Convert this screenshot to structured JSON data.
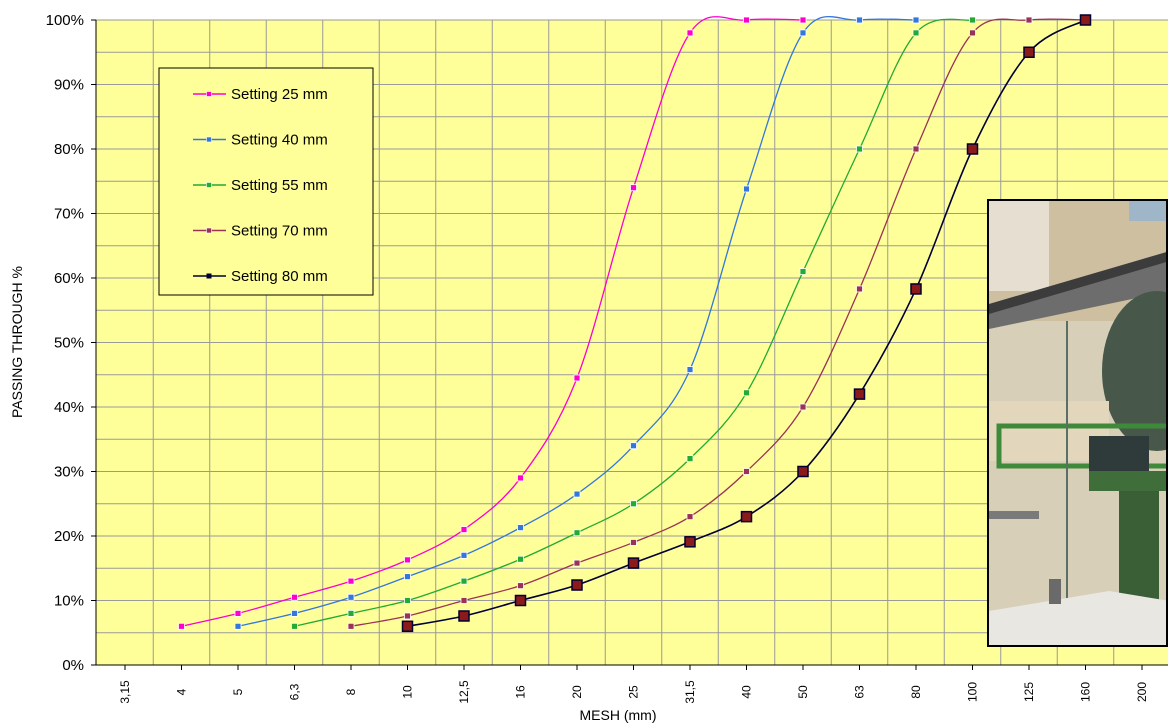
{
  "chart_data": {
    "type": "line",
    "xlabel": "MESH (mm)",
    "ylabel": "PASSING THROUGH %",
    "x_scale": "log",
    "x_ticks": [
      "3,15",
      "4",
      "5",
      "6,3",
      "8",
      "10",
      "12,5",
      "16",
      "20",
      "25",
      "31,5",
      "40",
      "50",
      "63",
      "80",
      "100",
      "125",
      "160",
      "200"
    ],
    "y_ticks": [
      "0%",
      "10%",
      "20%",
      "30%",
      "40%",
      "50%",
      "60%",
      "70%",
      "80%",
      "90%",
      "100%"
    ],
    "ylim": [
      0,
      100
    ],
    "grid": true,
    "legend_position": "top-left",
    "background_color": "#FFFF99",
    "grid_color": "#999999",
    "series": [
      {
        "name": "Setting 25 mm",
        "color": "#FF00CC",
        "marker": "small-square",
        "x": [
          4,
          5,
          6.3,
          8,
          10,
          12.5,
          16,
          20,
          25,
          31.5,
          40,
          50
        ],
        "y": [
          6,
          8,
          10.5,
          13,
          16.3,
          21,
          29,
          44.5,
          74,
          98,
          100,
          100
        ]
      },
      {
        "name": "Setting 40 mm",
        "color": "#3377DD",
        "marker": "small-square",
        "x": [
          5,
          6.3,
          8,
          10,
          12.5,
          16,
          20,
          25,
          31.5,
          40,
          50,
          63,
          80
        ],
        "y": [
          6,
          8,
          10.5,
          13.7,
          17,
          21.3,
          26.5,
          34,
          45.8,
          73.8,
          98,
          100,
          100
        ]
      },
      {
        "name": "Setting 55 mm",
        "color": "#22AA33",
        "marker": "small-square",
        "x": [
          6.3,
          8,
          10,
          12.5,
          16,
          20,
          25,
          31.5,
          40,
          50,
          63,
          80,
          100
        ],
        "y": [
          6,
          8,
          10,
          13,
          16.4,
          20.5,
          25,
          32,
          42.2,
          61,
          80,
          98,
          100
        ]
      },
      {
        "name": "Setting 70 mm",
        "color": "#993355",
        "marker": "small-square",
        "x": [
          8,
          10,
          12.5,
          16,
          20,
          25,
          31.5,
          40,
          50,
          63,
          80,
          100,
          125,
          160
        ],
        "y": [
          6,
          7.6,
          10,
          12.3,
          15.8,
          19,
          23,
          30,
          40,
          58.3,
          80,
          98,
          100,
          100
        ]
      },
      {
        "name": "Setting 80 mm",
        "color": "#000033",
        "marker": "large-square",
        "marker_fill": "#8B1A1A",
        "x": [
          10,
          12.5,
          16,
          20,
          25,
          31.5,
          40,
          50,
          63,
          80,
          100,
          125,
          160
        ],
        "y": [
          6,
          7.6,
          10,
          12.4,
          15.8,
          19.1,
          23,
          30,
          42,
          58.3,
          80,
          95,
          100
        ]
      }
    ]
  }
}
